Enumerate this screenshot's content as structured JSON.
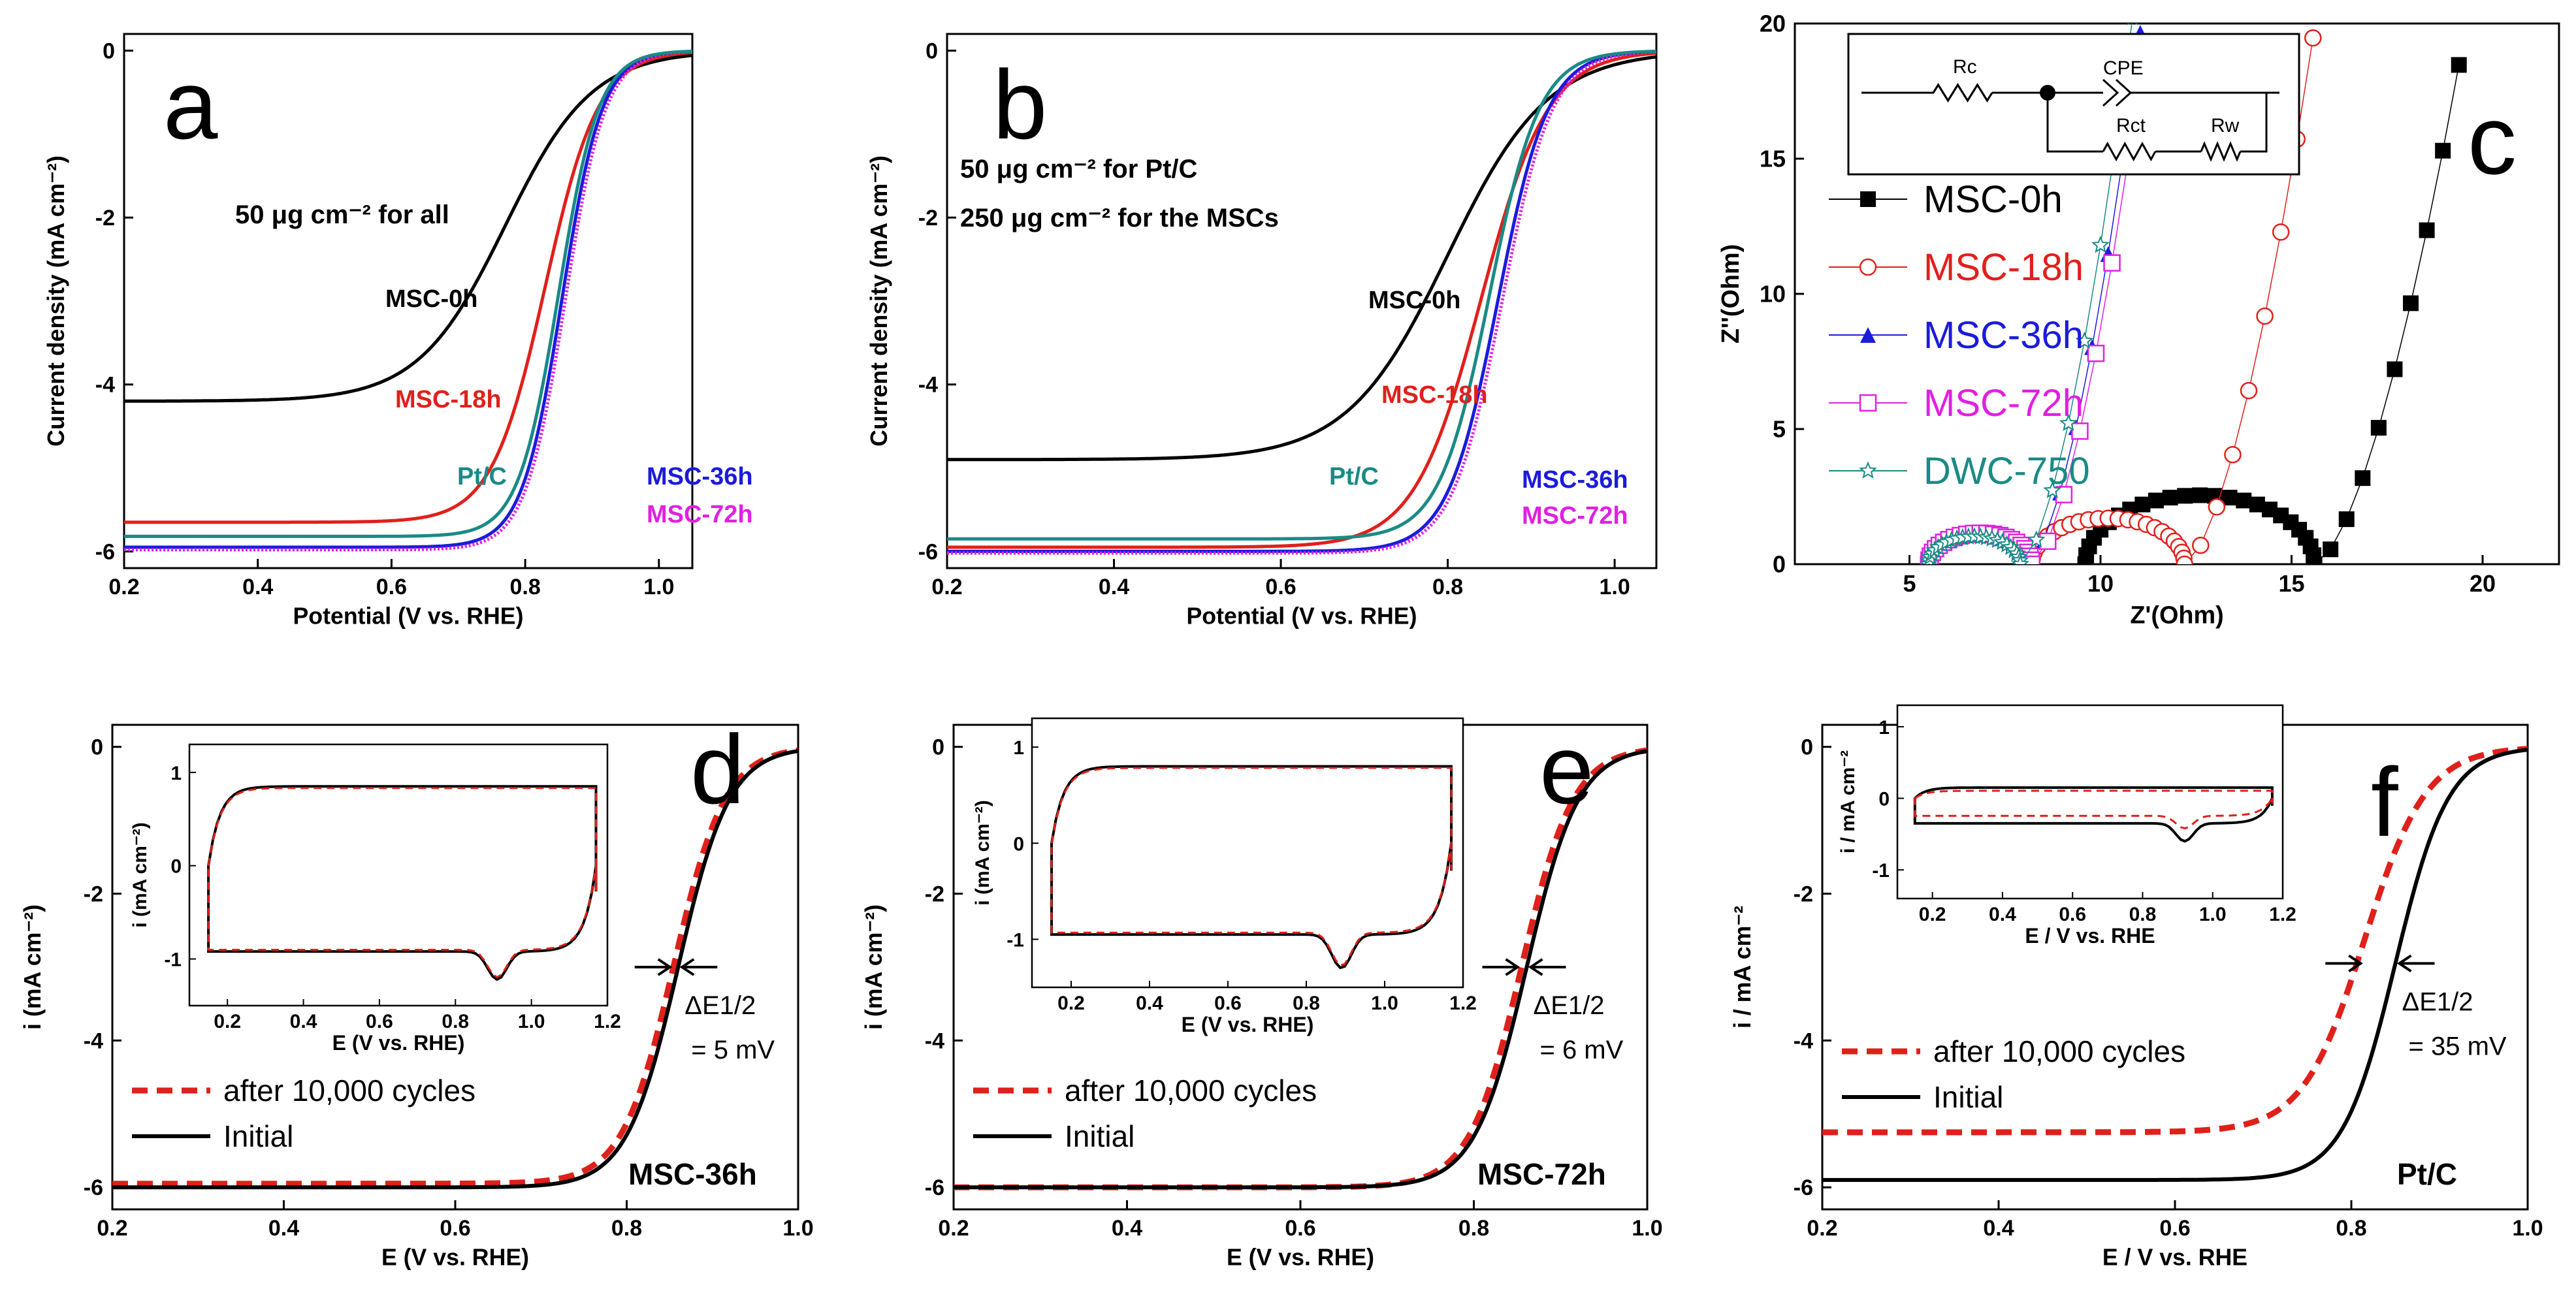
{
  "chart_data": [
    {
      "panel": "a",
      "type": "line",
      "title": "",
      "annotation": "50 μg cm⁻² for all",
      "xlabel": "Potential (V vs. RHE)",
      "ylabel": "Current density (mA cm⁻²)",
      "xlim": [
        0.2,
        1.05
      ],
      "ylim": [
        -6.2,
        0.2
      ],
      "xticks": [
        "0.2",
        "0.4",
        "0.6",
        "0.8",
        "1.0"
      ],
      "yticks": [
        "0",
        "-2",
        "-4",
        "-6"
      ],
      "series": [
        {
          "name": "MSC-0h",
          "color": "#000000",
          "model": {
            "L": -4.2,
            "E": 0.77,
            "w": 0.065
          }
        },
        {
          "name": "MSC-18h",
          "color": "#e0201b",
          "model": {
            "L": -5.65,
            "E": 0.83,
            "w": 0.04
          }
        },
        {
          "name": "MSC-36h",
          "color": "#1b1bdc",
          "model": {
            "L": -5.95,
            "E": 0.855,
            "w": 0.03
          }
        },
        {
          "name": "MSC-72h",
          "color": "#e020e0",
          "model": {
            "L": -5.98,
            "E": 0.86,
            "w": 0.03
          }
        },
        {
          "name": "Pt/C",
          "color": "#1a8a86",
          "model": {
            "L": -5.82,
            "E": 0.85,
            "w": 0.03
          }
        }
      ]
    },
    {
      "panel": "b",
      "type": "line",
      "annotation": "50 μg cm⁻² for Pt/C",
      "annotation2": "250 μg cm⁻² for the MSCs",
      "xlabel": "Potential (V vs. RHE)",
      "ylabel": "Current density (mA cm⁻²)",
      "xlim": [
        0.2,
        1.05
      ],
      "ylim": [
        -6.2,
        0.2
      ],
      "xticks": [
        "0.2",
        "0.4",
        "0.6",
        "0.8",
        "1.0"
      ],
      "yticks": [
        "0",
        "-2",
        "-4",
        "-6"
      ],
      "series": [
        {
          "name": "MSC-0h",
          "color": "#000000",
          "model": {
            "L": -4.9,
            "E": 0.8,
            "w": 0.06
          }
        },
        {
          "name": "MSC-18h",
          "color": "#e0201b",
          "model": {
            "L": -5.95,
            "E": 0.84,
            "w": 0.04
          }
        },
        {
          "name": "MSC-36h",
          "color": "#1b1bdc",
          "model": {
            "L": -6.0,
            "E": 0.86,
            "w": 0.03
          }
        },
        {
          "name": "MSC-72h",
          "color": "#e020e0",
          "model": {
            "L": -6.02,
            "E": 0.865,
            "w": 0.03
          }
        },
        {
          "name": "Pt/C",
          "color": "#1a8a86",
          "model": {
            "L": -5.85,
            "E": 0.85,
            "w": 0.03
          }
        }
      ]
    },
    {
      "panel": "c",
      "type": "scatter",
      "xlabel": "Z'(Ohm)",
      "ylabel": "Z''(Ohm)",
      "xlim": [
        2,
        22
      ],
      "ylim": [
        0,
        20
      ],
      "xticks": [
        "5",
        "10",
        "15",
        "20"
      ],
      "yticks": [
        "0",
        "5",
        "10",
        "15",
        "20"
      ],
      "circuit_labels": [
        "Rc",
        "CPE",
        "Rct",
        "Rw"
      ],
      "series": [
        {
          "name": "MSC-0h",
          "color": "#000000",
          "marker": "square-filled",
          "model": {
            "R0": 9.6,
            "Rct": 6.0,
            "c": 15.6,
            "k": 2.2
          }
        },
        {
          "name": "MSC-18h",
          "color": "#e0201b",
          "marker": "circle-open",
          "model": {
            "R0": 8.2,
            "Rct": 4.0,
            "c": 12.2,
            "k": 2.8
          }
        },
        {
          "name": "MSC-36h",
          "color": "#1b1bdc",
          "marker": "triangle-filled",
          "model": {
            "R0": 5.5,
            "Rct": 2.6,
            "c": 8.1,
            "k": 3.5
          }
        },
        {
          "name": "MSC-72h",
          "color": "#e020e0",
          "marker": "square-open",
          "model": {
            "R0": 5.5,
            "Rct": 2.7,
            "c": 8.2,
            "k": 3.4
          }
        },
        {
          "name": "DWC-750",
          "color": "#1a8a86",
          "marker": "star-open",
          "model": {
            "R0": 5.5,
            "Rct": 2.4,
            "c": 7.9,
            "k": 3.6
          }
        }
      ]
    },
    {
      "panel": "d",
      "type": "line",
      "label": "MSC-36h",
      "delta_label": "ΔE1/2",
      "delta_value": "= 5 mV",
      "xlabel": "E (V vs. RHE)",
      "ylabel": "i (mA cm⁻²)",
      "xlim": [
        0.2,
        1.0
      ],
      "ylim": [
        -6.3,
        0.3
      ],
      "xticks": [
        "0.2",
        "0.4",
        "0.6",
        "0.8",
        "1.0"
      ],
      "yticks": [
        "0",
        "-2",
        "-4",
        "-6"
      ],
      "series": [
        {
          "name": "after 10,000 cycles",
          "color": "#e0201b",
          "dash": true,
          "model": {
            "L": -5.95,
            "E": 0.855,
            "w": 0.03
          }
        },
        {
          "name": "Initial",
          "color": "#000000",
          "dash": false,
          "model": {
            "L": -6.0,
            "E": 0.86,
            "w": 0.03
          }
        }
      ],
      "inset": {
        "xlabel": "E (V vs. RHE)",
        "ylabel": "i (mA cm⁻²)",
        "xlim": [
          0.1,
          1.2
        ],
        "ylim": [
          -1.5,
          1.3
        ],
        "xticks": [
          "0.2",
          "0.4",
          "0.6",
          "0.8",
          "1.0",
          "1.2"
        ],
        "yticks": [
          "-1",
          "0",
          "1"
        ],
        "cv": {
          "up": 0.85,
          "down": -0.92,
          "peak": -1.22,
          "peakE": 0.91
        }
      }
    },
    {
      "panel": "e",
      "type": "line",
      "label": "MSC-72h",
      "delta_label": "ΔE1/2",
      "delta_value": "= 6 mV",
      "xlabel": "E (V vs. RHE)",
      "ylabel": "i (mA cm⁻²)",
      "xlim": [
        0.2,
        1.0
      ],
      "ylim": [
        -6.3,
        0.3
      ],
      "xticks": [
        "0.2",
        "0.4",
        "0.6",
        "0.8",
        "1.0"
      ],
      "yticks": [
        "0",
        "-2",
        "-4",
        "-6"
      ],
      "series": [
        {
          "name": "after 10,000 cycles",
          "color": "#e0201b",
          "dash": true,
          "model": {
            "L": -6.0,
            "E": 0.855,
            "w": 0.03
          }
        },
        {
          "name": "Initial",
          "color": "#000000",
          "dash": false,
          "model": {
            "L": -6.0,
            "E": 0.861,
            "w": 0.03
          }
        }
      ],
      "inset": {
        "xlabel": "E (V vs. RHE)",
        "ylabel": "i (mA cm⁻²)",
        "xlim": [
          0.1,
          1.2
        ],
        "ylim": [
          -1.5,
          1.3
        ],
        "xticks": [
          "0.2",
          "0.4",
          "0.6",
          "0.8",
          "1.0",
          "1.2"
        ],
        "yticks": [
          "-1",
          "0",
          "1"
        ],
        "cv": {
          "up": 0.8,
          "down": -0.95,
          "peak": -1.3,
          "peakE": 0.89
        }
      }
    },
    {
      "panel": "f",
      "type": "line",
      "label": "Pt/C",
      "delta_label": "ΔE1/2",
      "delta_value": "= 35 mV",
      "xlabel": "E / V vs. RHE",
      "ylabel": "i / mA cm⁻²",
      "xlim": [
        0.2,
        1.0
      ],
      "ylim": [
        -6.3,
        0.3
      ],
      "xticks": [
        "0.2",
        "0.4",
        "0.6",
        "0.8",
        "1.0"
      ],
      "yticks": [
        "0",
        "-2",
        "-4",
        "-6"
      ],
      "series": [
        {
          "name": "after 10,000 cycles",
          "color": "#e0201b",
          "dash": true,
          "model": {
            "L": -5.25,
            "E": 0.815,
            "w": 0.035
          }
        },
        {
          "name": "Initial",
          "color": "#000000",
          "dash": false,
          "model": {
            "L": -5.9,
            "E": 0.85,
            "w": 0.03
          }
        }
      ],
      "inset": {
        "xlabel": "E / V vs. RHE",
        "ylabel": "i / mA cm⁻²",
        "xlim": [
          0.1,
          1.2
        ],
        "ylim": [
          -1.4,
          1.3
        ],
        "xticks": [
          "0.2",
          "0.4",
          "0.6",
          "0.8",
          "1.0",
          "1.2"
        ],
        "yticks": [
          "-1",
          "0",
          "1"
        ],
        "cv": {
          "up": 0.15,
          "down": -0.35,
          "peak": -0.6,
          "peakE": 0.92
        }
      }
    }
  ]
}
